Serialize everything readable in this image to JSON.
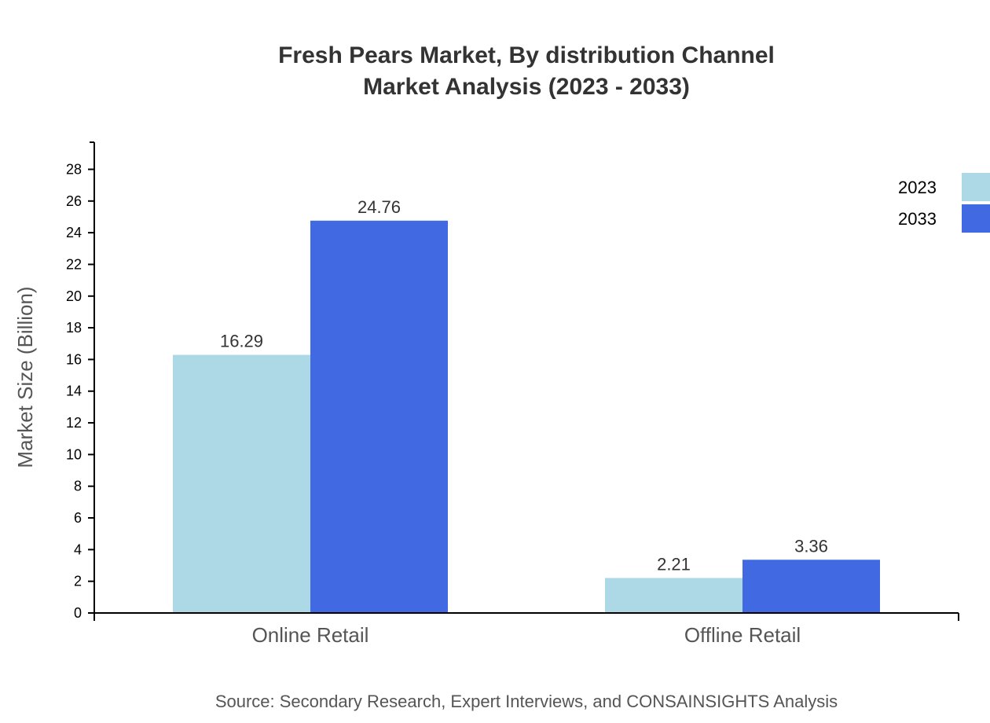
{
  "chart_data": {
    "type": "bar",
    "title": [
      "Fresh Pears Market, By distribution Channel",
      "Market Analysis (2023 - 2033)"
    ],
    "xlabel": "",
    "ylabel": "Market Size (Billion)",
    "categories": [
      "Online Retail",
      "Offline Retail"
    ],
    "series": [
      {
        "name": "2023",
        "values": [
          16.29,
          2.21
        ],
        "color": "#ADD8E6"
      },
      {
        "name": "2033",
        "values": [
          24.76,
          3.36
        ],
        "color": "#4169E1"
      }
    ],
    "ylim": [
      0,
      29.71
    ],
    "yticks": [
      0,
      2,
      4,
      6,
      8,
      10,
      12,
      14,
      16,
      18,
      20,
      22,
      24,
      26,
      28
    ],
    "grid": false,
    "legend": "top-right",
    "source": "Source: Secondary Research, Expert Interviews, and CONSAINSIGHTS Analysis"
  }
}
